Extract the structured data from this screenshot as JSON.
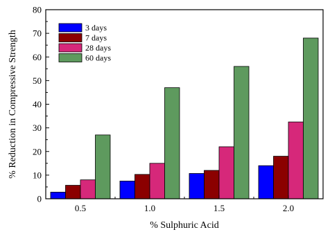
{
  "chart_data": {
    "type": "bar",
    "title": "",
    "xlabel": "% Sulphuric Acid",
    "ylabel": "% Reduction in Compressive Strength",
    "categories": [
      "0.5",
      "1.0",
      "1.5",
      "2.0"
    ],
    "ylim": [
      0,
      80
    ],
    "yticks": [
      0,
      10,
      20,
      30,
      40,
      50,
      60,
      70,
      80
    ],
    "grid": false,
    "legend_position": "top-left",
    "series": [
      {
        "name": "3 days",
        "color": "#0000ff",
        "values": [
          2.8,
          7.5,
          10.7,
          14.0
        ]
      },
      {
        "name": "7 days",
        "color": "#8b0000",
        "values": [
          5.7,
          10.3,
          12.0,
          18.0
        ]
      },
      {
        "name": "28 days",
        "color": "#d6287a",
        "values": [
          8.0,
          15.0,
          22.0,
          32.5
        ]
      },
      {
        "name": "60 days",
        "color": "#5e9a5e",
        "values": [
          27.0,
          47.0,
          56.0,
          68.0
        ]
      }
    ]
  }
}
